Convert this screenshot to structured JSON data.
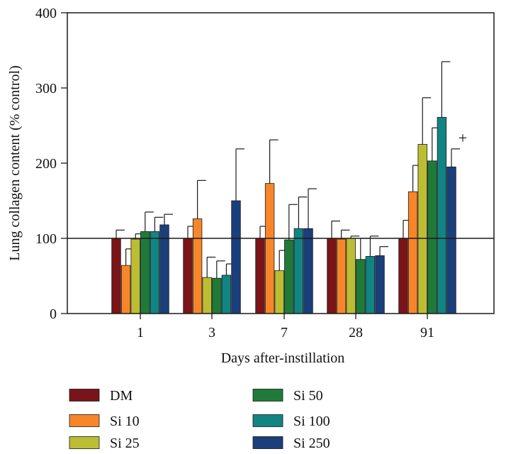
{
  "chart_data": {
    "type": "bar",
    "title": "",
    "xlabel": "Days after-instillation",
    "ylabel": "Lung collagen content (% control)",
    "categories": [
      "1",
      "3",
      "7",
      "28",
      "91"
    ],
    "ylim": [
      0,
      400
    ],
    "yticks": [
      0,
      100,
      200,
      300,
      400
    ],
    "reference_line": 100,
    "grid": false,
    "legend_position": "bottom",
    "series": [
      {
        "name": "DM",
        "color": "#7a1418",
        "values": [
          100,
          100,
          100,
          100,
          100
        ],
        "errors": [
          11,
          16,
          16,
          23,
          24
        ]
      },
      {
        "name": "Si 10",
        "color": "#f7862a",
        "values": [
          64,
          126,
          173,
          99,
          162
        ],
        "errors": [
          22,
          51,
          58,
          12,
          35
        ]
      },
      {
        "name": "Si 25",
        "color": "#bdbd33",
        "values": [
          99,
          48,
          57,
          100,
          225
        ],
        "errors": [
          7,
          27,
          27,
          3,
          62
        ]
      },
      {
        "name": "Si 50",
        "color": "#1f7a3a",
        "values": [
          109,
          47,
          98,
          72,
          203
        ],
        "errors": [
          26,
          23,
          47,
          28,
          44
        ]
      },
      {
        "name": "Si 100",
        "color": "#128484",
        "values": [
          109,
          51,
          113,
          76,
          261
        ],
        "errors": [
          19,
          15,
          42,
          27,
          74
        ]
      },
      {
        "name": "Si 250",
        "color": "#1a3f7a",
        "values": [
          118,
          150,
          113,
          77,
          195
        ],
        "errors": [
          14,
          69,
          53,
          12,
          24
        ]
      }
    ],
    "annotations": [
      {
        "text": "+",
        "category": "91",
        "series": "Si 250"
      }
    ]
  }
}
